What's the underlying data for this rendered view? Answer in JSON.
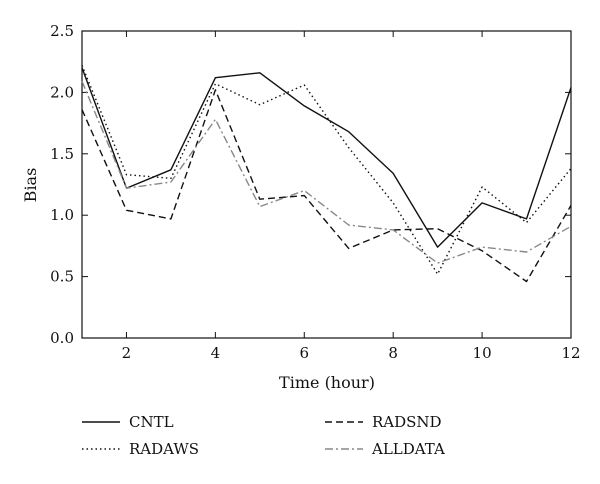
{
  "chart_data": {
    "type": "line",
    "title": "",
    "xlabel": "Time (hour)",
    "ylabel": "Bias",
    "xlim": [
      1,
      12
    ],
    "ylim": [
      0.0,
      2.5
    ],
    "x_ticks": [
      2,
      4,
      6,
      8,
      10,
      12
    ],
    "x_tick_labels": [
      "2",
      "4",
      "6",
      "8",
      "10",
      "12"
    ],
    "y_ticks": [
      0.0,
      0.5,
      1.0,
      1.5,
      2.0,
      2.5
    ],
    "y_tick_labels": [
      "0.0",
      "0.5",
      "1.0",
      "1.5",
      "2.0",
      "2.5"
    ],
    "grid": false,
    "legend_position": "bottom",
    "x": [
      1,
      2,
      3,
      4,
      5,
      6,
      7,
      8,
      9,
      10,
      11,
      12
    ],
    "series": [
      {
        "name": "CNTL",
        "style": "solid",
        "color": "#111111",
        "values": [
          2.2,
          1.22,
          1.37,
          2.12,
          2.16,
          1.89,
          1.68,
          1.34,
          0.74,
          1.1,
          0.97,
          2.04
        ]
      },
      {
        "name": "RADSND",
        "style": "dashed",
        "color": "#111111",
        "values": [
          1.86,
          1.04,
          0.97,
          2.02,
          1.13,
          1.16,
          0.73,
          0.88,
          0.89,
          0.71,
          0.46,
          1.08
        ]
      },
      {
        "name": "RADAWS",
        "style": "dotted",
        "color": "#111111",
        "values": [
          2.22,
          1.33,
          1.3,
          2.07,
          1.9,
          2.06,
          1.55,
          1.1,
          0.52,
          1.23,
          0.94,
          1.38
        ]
      },
      {
        "name": "ALLDATA",
        "style": "dashdot",
        "color": "#888888",
        "values": [
          2.09,
          1.22,
          1.27,
          1.78,
          1.07,
          1.2,
          0.92,
          0.88,
          0.61,
          0.74,
          0.7,
          0.91
        ]
      }
    ]
  }
}
